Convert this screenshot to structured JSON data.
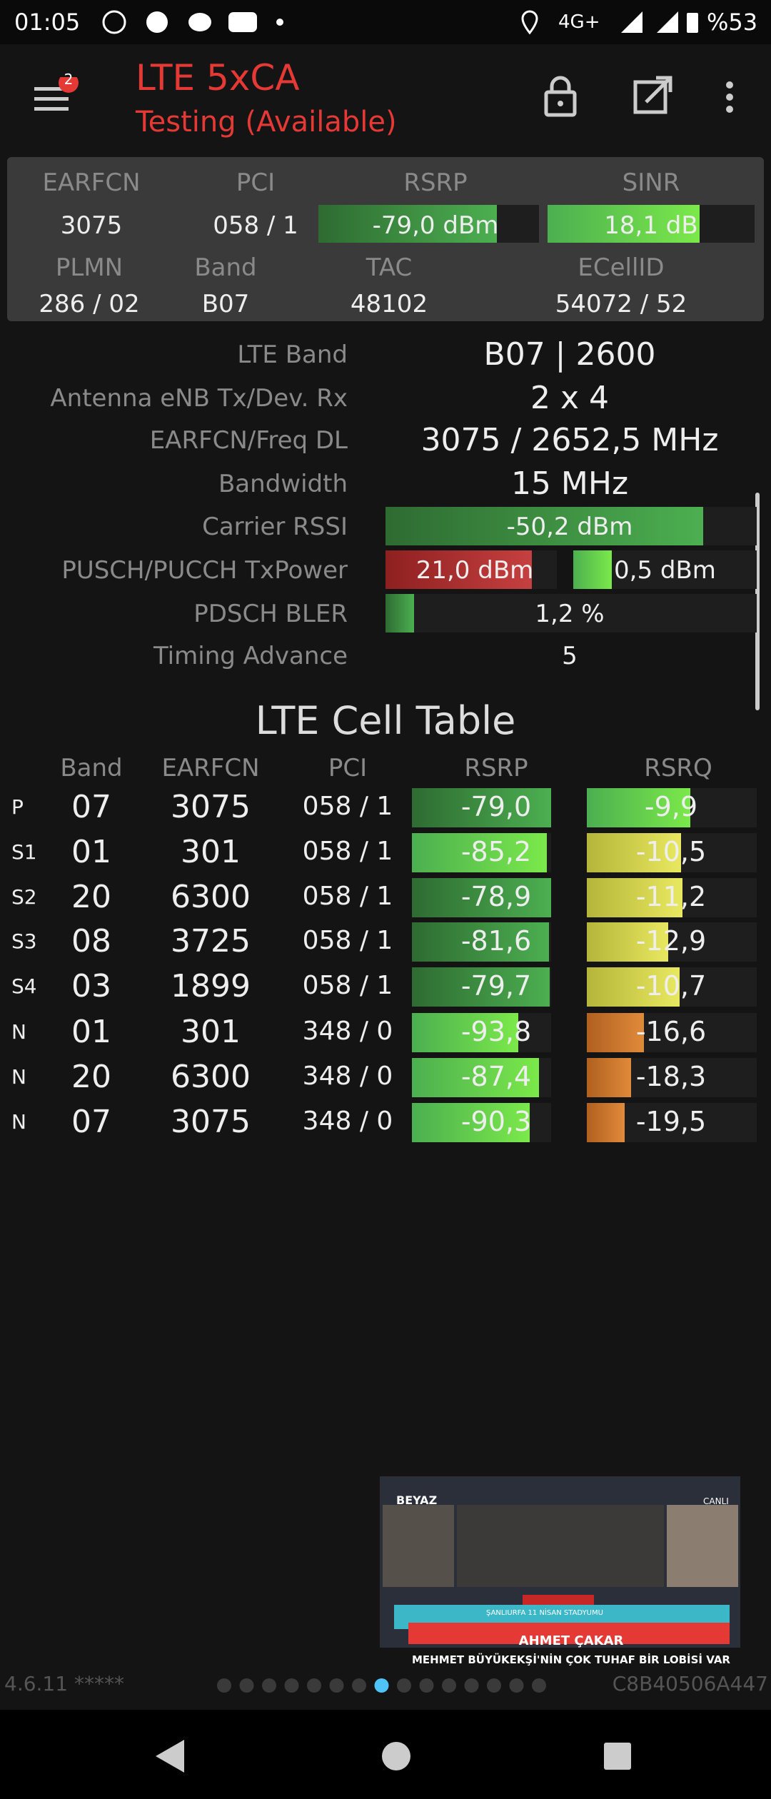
{
  "status_bar": {
    "time": "01:05",
    "network": "4G+",
    "battery": "%53"
  },
  "app_bar": {
    "badge": "2",
    "title": "LTE 5xCA",
    "subtitle": "Testing (Available)"
  },
  "summary": {
    "headers": [
      "EARFCN",
      "PCI",
      "RSRP",
      "SINR"
    ],
    "values": [
      "3075",
      "058 / 1",
      "-79,0 dBm",
      "18,1 dB"
    ],
    "headers2": [
      "PLMN",
      "Band",
      "TAC",
      "ECellID"
    ],
    "values2": [
      "286 / 02",
      "B07",
      "48102",
      "54072 / 52"
    ]
  },
  "details": {
    "rows": [
      {
        "label": "LTE Band",
        "value": "B07 | 2600"
      },
      {
        "label": "Antenna eNB Tx/Dev. Rx",
        "value": "2 x 4"
      },
      {
        "label": "EARFCN/Freq DL",
        "value": "3075 / 2652,5 MHz"
      },
      {
        "label": "Bandwidth",
        "value": "15 MHz"
      },
      {
        "label": "Carrier RSSI",
        "value": "-50,2 dBm"
      },
      {
        "label": "PUSCH/PUCCH TxPower",
        "value": "21,0 dBm",
        "value2": "0,5 dBm"
      },
      {
        "label": "PDSCH BLER",
        "value": "1,2 %"
      },
      {
        "label": "Timing Advance",
        "value": "5"
      }
    ]
  },
  "cell_table": {
    "title": "LTE Cell Table",
    "headers": [
      "Band",
      "EARFCN",
      "PCI",
      "RSRP",
      "RSRQ"
    ],
    "rows": [
      [
        "P",
        "07",
        "3075",
        "058 / 1",
        "-79,0",
        "-9,9"
      ],
      [
        "S1",
        "01",
        "301",
        "058 / 1",
        "-85,2",
        "-10,5"
      ],
      [
        "S2",
        "20",
        "6300",
        "058 / 1",
        "-78,9",
        "-11,2"
      ],
      [
        "S3",
        "08",
        "3725",
        "058 / 1",
        "-81,6",
        "-12,9"
      ],
      [
        "S4",
        "03",
        "1899",
        "058 / 1",
        "-79,7",
        "-10,7"
      ],
      [
        "N",
        "01",
        "301",
        "348 / 0",
        "-93,8",
        "-16,6"
      ],
      [
        "N",
        "20",
        "6300",
        "348 / 0",
        "-87,4",
        "-18,3"
      ],
      [
        "N",
        "07",
        "3075",
        "348 / 0",
        "-90,3",
        "-19,5"
      ]
    ]
  },
  "ad": {
    "brand": "BEYAZ",
    "live": "CANLI",
    "caption": "ŞANLIURFA 11 NİSAN STADYUMU",
    "name": "AHMET ÇAKAR",
    "headline": "MEHMET BÜYÜKEKŞİ'NİN ÇOK TUHAF BİR LOBİSİ VAR"
  },
  "footer": {
    "version": "4.6.11 *****",
    "device_id": "C8B40506A447"
  }
}
